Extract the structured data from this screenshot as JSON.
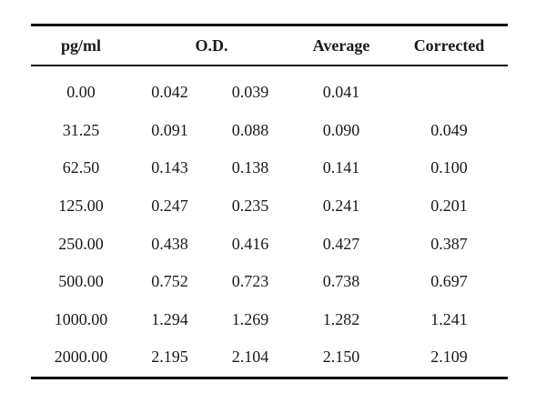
{
  "table": {
    "headers": {
      "conc": "pg/ml",
      "od": "O.D.",
      "average": "Average",
      "corrected": "Corrected"
    },
    "rows": [
      {
        "conc": "0.00",
        "od1": "0.042",
        "od2": "0.039",
        "average": "0.041",
        "corrected": ""
      },
      {
        "conc": "31.25",
        "od1": "0.091",
        "od2": "0.088",
        "average": "0.090",
        "corrected": "0.049"
      },
      {
        "conc": "62.50",
        "od1": "0.143",
        "od2": "0.138",
        "average": "0.141",
        "corrected": "0.100"
      },
      {
        "conc": "125.00",
        "od1": "0.247",
        "od2": "0.235",
        "average": "0.241",
        "corrected": "0.201"
      },
      {
        "conc": "250.00",
        "od1": "0.438",
        "od2": "0.416",
        "average": "0.427",
        "corrected": "0.387"
      },
      {
        "conc": "500.00",
        "od1": "0.752",
        "od2": "0.723",
        "average": "0.738",
        "corrected": "0.697"
      },
      {
        "conc": "1000.00",
        "od1": "1.294",
        "od2": "1.269",
        "average": "1.282",
        "corrected": "1.241"
      },
      {
        "conc": "2000.00",
        "od1": "2.195",
        "od2": "2.104",
        "average": "2.150",
        "corrected": "2.109"
      }
    ]
  }
}
